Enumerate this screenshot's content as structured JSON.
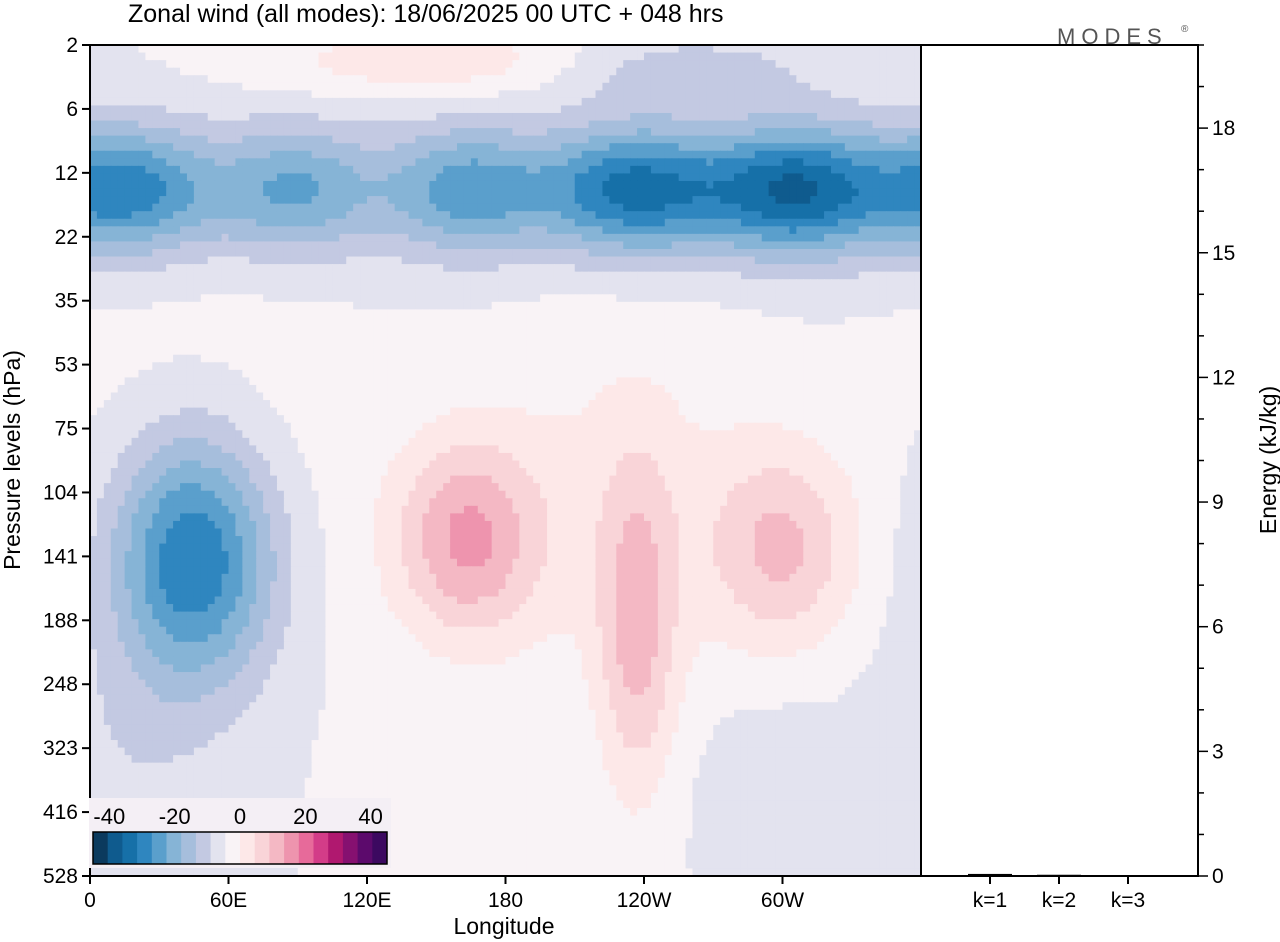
{
  "title": "Zonal wind (all modes):  18/06/2025  00 UTC  + 048 hrs",
  "logo": "MODES",
  "logo_mark": "®",
  "chart_data": [
    {
      "type": "heatmap",
      "title": "Zonal wind (all modes):  18/06/2025  00 UTC  + 048 hrs",
      "xlabel": "Longitude",
      "ylabel": "Pressure levels (hPa)",
      "x_tick_labels": [
        "0",
        "60E",
        "120E",
        "180",
        "120W",
        "60W"
      ],
      "x_tick_values_deg_east": [
        0,
        60,
        120,
        180,
        240,
        300
      ],
      "xlim_deg_east": [
        0,
        360
      ],
      "y_tick_labels": [
        "2",
        "6",
        "12",
        "22",
        "35",
        "53",
        "75",
        "104",
        "141",
        "188",
        "248",
        "323",
        "416",
        "528"
      ],
      "colorbar": {
        "tick_labels": [
          "-40",
          "-20",
          "0",
          "20",
          "40"
        ],
        "range": [
          -45,
          45
        ],
        "step": 5,
        "colors": [
          "#0b3a5e",
          "#0f5b8e",
          "#1670a8",
          "#2f86bf",
          "#5a9fcc",
          "#86b4d6",
          "#a6bedc",
          "#c3c9e2",
          "#e3e3ef",
          "#f9f3f6",
          "#fde8e8",
          "#f9d4d8",
          "#f4b8c4",
          "#ee94ae",
          "#e76a9a",
          "#d33c88",
          "#b0186f",
          "#861070",
          "#5c0a6c",
          "#3c0960"
        ],
        "placement": "bottom-left"
      },
      "features": [
        {
          "desc": "strong easterly band",
          "lon_range": [
            0,
            360
          ],
          "pressure_hPa": [
            7,
            30
          ],
          "max_u": -35
        },
        {
          "desc": "easterly core",
          "lon_center": 45,
          "pressure_hPa": 141,
          "max_u": -35
        },
        {
          "desc": "westerly maximum",
          "lon_center": 163,
          "pressure_hPa": 130,
          "max_u": 20
        },
        {
          "desc": "westerly maximum",
          "lon_center": 237,
          "pressure_hPa": 200,
          "max_u": 15
        },
        {
          "desc": "westerly maximum",
          "lon_center": 300,
          "pressure_hPa": 135,
          "max_u": 15
        },
        {
          "desc": "weak westerlies aloft",
          "lon_range": [
            60,
            230
          ],
          "pressure_hPa": [
            2,
            5
          ],
          "max_u": 10
        }
      ]
    },
    {
      "type": "bar",
      "ylabel": "Energy (kJ/kg)",
      "categories": [
        "k=1",
        "k=2",
        "k=3"
      ],
      "values": [
        0.05,
        0.03,
        0.0
      ],
      "ylim": [
        0,
        20
      ],
      "y_tick_labels": [
        "0",
        "3",
        "6",
        "9",
        "12",
        "15",
        "18"
      ],
      "y_tick_values": [
        0,
        3,
        6,
        9,
        12,
        15,
        18
      ]
    }
  ]
}
